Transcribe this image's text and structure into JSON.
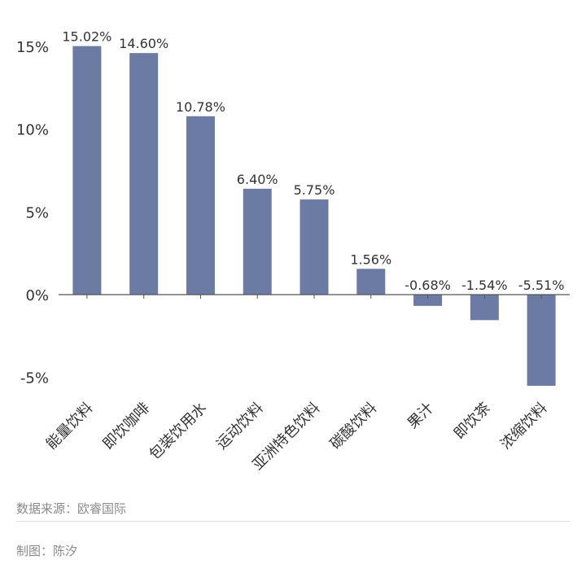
{
  "chart_data": {
    "type": "bar",
    "categories": [
      "能量饮料",
      "即饮咖啡",
      "包装饮用水",
      "运动饮料",
      "亚洲特色饮料",
      "碳酸饮料",
      "果汁",
      "即饮茶",
      "浓缩饮料"
    ],
    "values": [
      15.02,
      14.6,
      10.78,
      6.4,
      5.75,
      1.56,
      -0.68,
      -1.54,
      -5.51
    ],
    "data_labels": [
      "15.02%",
      "14.60%",
      "10.78%",
      "6.40%",
      "5.75%",
      "1.56%",
      "-0.68%",
      "-1.54%",
      "-5.51%"
    ],
    "y_ticks": [
      15,
      10,
      5,
      0,
      -5
    ],
    "y_tick_labels": [
      "15%",
      "10%",
      "5%",
      "0%",
      "-5%"
    ],
    "ylim": [
      -5,
      15
    ],
    "title": "",
    "xlabel": "",
    "ylabel": "",
    "bar_color": "#6b7ba4",
    "grid": false
  },
  "footer": {
    "source": "数据来源：欧睿国际",
    "author": "制图：陈汐"
  }
}
